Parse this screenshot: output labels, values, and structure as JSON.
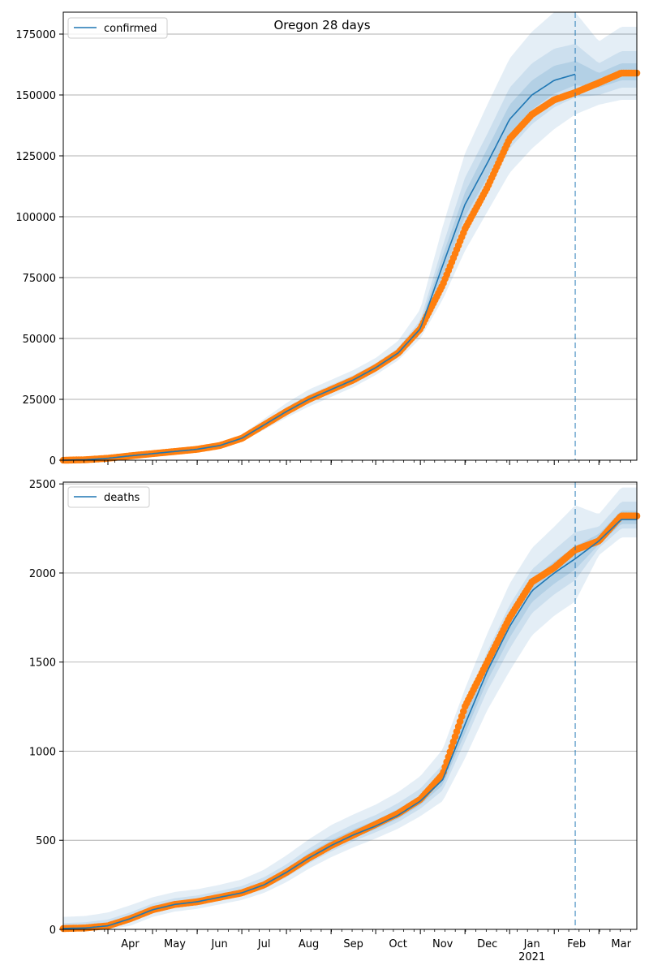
{
  "chart_data": [
    {
      "type": "line",
      "title": "Oregon 28 days",
      "legend": {
        "entries": [
          "confirmed"
        ],
        "placement": "top-left"
      },
      "ylim": [
        0,
        184000
      ],
      "yticks": [
        0,
        25000,
        50000,
        75000,
        100000,
        125000,
        150000,
        175000
      ],
      "grid": "horizontal",
      "forecast_start_month": 11.47,
      "x_months": [
        0,
        0.5,
        1,
        1.5,
        2,
        2.5,
        3,
        3.5,
        4,
        4.5,
        5,
        5.5,
        6,
        6.5,
        7,
        7.5,
        8,
        8.5,
        9,
        9.5,
        10,
        10.5,
        11,
        11.47,
        12,
        12.5
      ],
      "series": [
        {
          "name": "confirmed",
          "role": "model",
          "values": [
            0,
            200,
            800,
            1800,
            2700,
            3600,
            4500,
            6000,
            9000,
            14500,
            20000,
            25000,
            29000,
            33000,
            38000,
            44000,
            54000,
            80000,
            105000,
            122000,
            140000,
            150000,
            156000,
            158500,
            null,
            null
          ]
        },
        {
          "name": "",
          "role": "observed",
          "values": [
            0,
            200,
            800,
            1800,
            2700,
            3600,
            4500,
            6000,
            9000,
            14500,
            20000,
            25000,
            29000,
            33000,
            38000,
            44000,
            54000,
            72000,
            95000,
            112000,
            132000,
            142000,
            148000,
            151000,
            155000,
            159000
          ]
        }
      ],
      "bands": [
        {
          "level": "outer",
          "lower": [
            0,
            0,
            400,
            1200,
            2000,
            2800,
            3800,
            5000,
            7800,
            12500,
            17500,
            22000,
            26000,
            30000,
            35000,
            41000,
            50000,
            66000,
            86000,
            102000,
            118000,
            128000,
            136000,
            142000,
            146000,
            148000
          ],
          "upper": [
            0,
            500,
            1300,
            2500,
            3500,
            4500,
            5500,
            7200,
            10500,
            17000,
            23500,
            29000,
            33000,
            37000,
            42000,
            49000,
            62000,
            96000,
            126000,
            146000,
            165000,
            176000,
            184000,
            184000,
            172000,
            178000
          ]
        },
        {
          "level": "middle",
          "lower": [
            0,
            100,
            600,
            1500,
            2400,
            3200,
            4200,
            5600,
            8500,
            13600,
            18900,
            23800,
            27700,
            31700,
            36800,
            42800,
            52500,
            72000,
            95000,
            111000,
            128000,
            138000,
            145000,
            149000,
            150000,
            153000
          ],
          "upper": [
            0,
            350,
            1050,
            2150,
            3100,
            4100,
            5000,
            6500,
            9700,
            15700,
            21700,
            26900,
            30900,
            34900,
            39800,
            46000,
            57500,
            88000,
            116000,
            134000,
            153000,
            163000,
            169000,
            171000,
            163000,
            168000
          ]
        },
        {
          "level": "inner",
          "lower": [
            0,
            150,
            700,
            1650,
            2550,
            3400,
            4350,
            5800,
            8750,
            14050,
            19450,
            24400,
            28350,
            32350,
            37400,
            43400,
            53200,
            76000,
            100000,
            116000,
            134000,
            144000,
            150500,
            154000,
            153000,
            156000
          ],
          "upper": [
            0,
            275,
            925,
            1975,
            2900,
            3850,
            4750,
            6250,
            9350,
            15100,
            20850,
            26000,
            29950,
            34000,
            38900,
            45000,
            55800,
            84000,
            110000,
            128000,
            146000,
            156000,
            162000,
            164000,
            159000,
            163000
          ]
        }
      ]
    },
    {
      "type": "line",
      "title": "",
      "legend": {
        "entries": [
          "deaths"
        ],
        "placement": "top-left"
      },
      "ylim": [
        0,
        2510
      ],
      "yticks": [
        0,
        500,
        1000,
        1500,
        2000,
        2500
      ],
      "grid": "horizontal",
      "forecast_start_month": 11.47,
      "x_months": [
        0,
        0.5,
        1,
        1.5,
        2,
        2.5,
        3,
        3.5,
        4,
        4.5,
        5,
        5.5,
        6,
        6.5,
        7,
        7.5,
        8,
        8.5,
        9,
        9.5,
        10,
        10.5,
        11,
        11.47,
        12,
        12.5
      ],
      "series": [
        {
          "name": "deaths",
          "role": "model",
          "values": [
            5,
            8,
            20,
            60,
            110,
            140,
            155,
            180,
            205,
            250,
            320,
            400,
            470,
            530,
            580,
            640,
            720,
            840,
            1150,
            1450,
            1700,
            1900,
            2000,
            2080,
            2180,
            2300
          ]
        },
        {
          "name": "",
          "role": "observed",
          "values": [
            5,
            8,
            20,
            60,
            110,
            140,
            155,
            180,
            205,
            250,
            320,
            400,
            470,
            530,
            590,
            650,
            730,
            870,
            1250,
            1500,
            1750,
            1950,
            2030,
            2130,
            2180,
            2320
          ]
        }
      ],
      "bands": [
        {
          "level": "outer",
          "lower": [
            0,
            0,
            0,
            20,
            70,
            100,
            115,
            140,
            165,
            205,
            265,
            340,
            405,
            460,
            510,
            565,
            635,
            720,
            960,
            1230,
            1450,
            1650,
            1760,
            1840,
            2100,
            2200
          ],
          "upper": [
            70,
            75,
            95,
            135,
            180,
            210,
            225,
            250,
            280,
            335,
            415,
            505,
            585,
            645,
            700,
            770,
            860,
            1010,
            1350,
            1660,
            1940,
            2140,
            2260,
            2380,
            2330,
            2480
          ]
        },
        {
          "level": "middle",
          "lower": [
            0,
            0,
            5,
            40,
            90,
            120,
            135,
            160,
            185,
            228,
            293,
            370,
            437,
            495,
            545,
            602,
            677,
            780,
            1055,
            1340,
            1575,
            1775,
            1880,
            1960,
            2140,
            2250
          ],
          "upper": [
            35,
            40,
            55,
            95,
            145,
            175,
            190,
            215,
            243,
            293,
            365,
            453,
            528,
            590,
            642,
            708,
            790,
            925,
            1250,
            1560,
            1820,
            2020,
            2130,
            2230,
            2260,
            2400
          ]
        },
        {
          "level": "inner",
          "lower": [
            0,
            2,
            12,
            50,
            100,
            130,
            145,
            170,
            195,
            240,
            305,
            385,
            454,
            512,
            562,
            621,
            698,
            810,
            1100,
            1395,
            1637,
            1837,
            1940,
            2020,
            2160,
            2275
          ],
          "upper": [
            20,
            22,
            35,
            78,
            127,
            157,
            172,
            197,
            223,
            270,
            340,
            428,
            500,
            560,
            612,
            675,
            752,
            880,
            1200,
            1505,
            1760,
            1960,
            2065,
            2150,
            2220,
            2350
          ]
        }
      ]
    }
  ],
  "x_axis": {
    "tick_labels": [
      "Apr",
      "May",
      "Jun",
      "Jul",
      "Aug",
      "Sep",
      "Oct",
      "Nov",
      "Dec",
      "Jan",
      "Feb",
      "Mar"
    ],
    "tick_months": [
      1,
      2,
      3,
      4,
      5,
      6,
      7,
      8,
      9,
      10,
      11,
      12
    ],
    "year_label": "2021",
    "year_under_month": 10
  },
  "colors": {
    "model_line": "#1f77b4",
    "observed_points": "#ff7f0e",
    "band": "#1f77b4",
    "forecast_line": "#1f77b4",
    "grid": "#b0b0b0"
  }
}
